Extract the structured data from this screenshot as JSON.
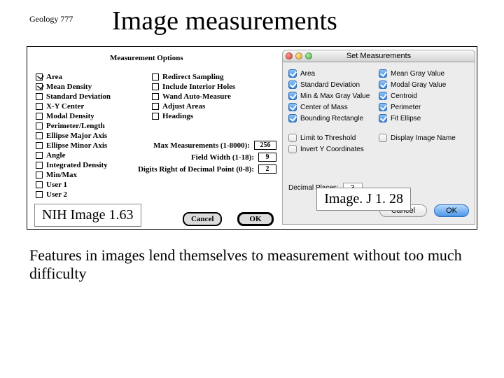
{
  "course": "Geology 777",
  "title": "Image measurements",
  "nih": {
    "panelTitle": "Measurement Options",
    "leftCol": [
      {
        "label": "Area",
        "on": true
      },
      {
        "label": "Mean Density",
        "on": true
      },
      {
        "label": "Standard Deviation",
        "on": false
      },
      {
        "label": "X-Y Center",
        "on": false
      },
      {
        "label": "Modal Density",
        "on": false
      },
      {
        "label": "Perimeter/Length",
        "on": false
      },
      {
        "label": "Ellipse Major Axis",
        "on": false
      },
      {
        "label": "Ellipse Minor Axis",
        "on": false
      },
      {
        "label": "Angle",
        "on": false
      },
      {
        "label": "Integrated Density",
        "on": false
      },
      {
        "label": "Min/Max",
        "on": false
      },
      {
        "label": "User 1",
        "on": false
      },
      {
        "label": "User 2",
        "on": false
      }
    ],
    "rightCol": [
      {
        "label": "Redirect Sampling",
        "on": false
      },
      {
        "label": "Include Interior Holes",
        "on": false
      },
      {
        "label": "Wand Auto-Measure",
        "on": false
      },
      {
        "label": "Adjust Areas",
        "on": false
      },
      {
        "label": "Headings",
        "on": false
      }
    ],
    "fields": [
      {
        "label": "Max Measurements (1-8000):",
        "value": "256",
        "wide": true
      },
      {
        "label": "Field Width (1-18):",
        "value": "9",
        "wide": false
      },
      {
        "label": "Digits Right of Decimal Point (0-8):",
        "value": "2",
        "wide": false
      }
    ],
    "cancel": "Cancel",
    "ok": "OK",
    "caption": "NIH Image 1.63"
  },
  "ij": {
    "title": "Set Measurements",
    "col1": [
      {
        "label": "Area",
        "on": true
      },
      {
        "label": "Standard Deviation",
        "on": true
      },
      {
        "label": "Min & Max Gray Value",
        "on": true
      },
      {
        "label": "Center of Mass",
        "on": true
      },
      {
        "label": "Bounding Rectangle",
        "on": true
      }
    ],
    "col2": [
      {
        "label": "Mean Gray Value",
        "on": true
      },
      {
        "label": "Modal Gray Value",
        "on": true
      },
      {
        "label": "Centroid",
        "on": true
      },
      {
        "label": "Perimeter",
        "on": true
      },
      {
        "label": "Fit Ellipse",
        "on": true
      }
    ],
    "lower1": [
      {
        "label": "Limit to Threshold",
        "on": false
      },
      {
        "label": "Invert Y Coordinates",
        "on": false
      }
    ],
    "lower2": [
      {
        "label": "Display Image Name",
        "on": false
      }
    ],
    "decLabel": "Decimal Places:",
    "decValue": "3",
    "cancel": "Cancel",
    "ok": "OK",
    "caption": "Image. J 1. 28"
  },
  "body": "Features in images lend themselves to measurement without too much difficulty"
}
